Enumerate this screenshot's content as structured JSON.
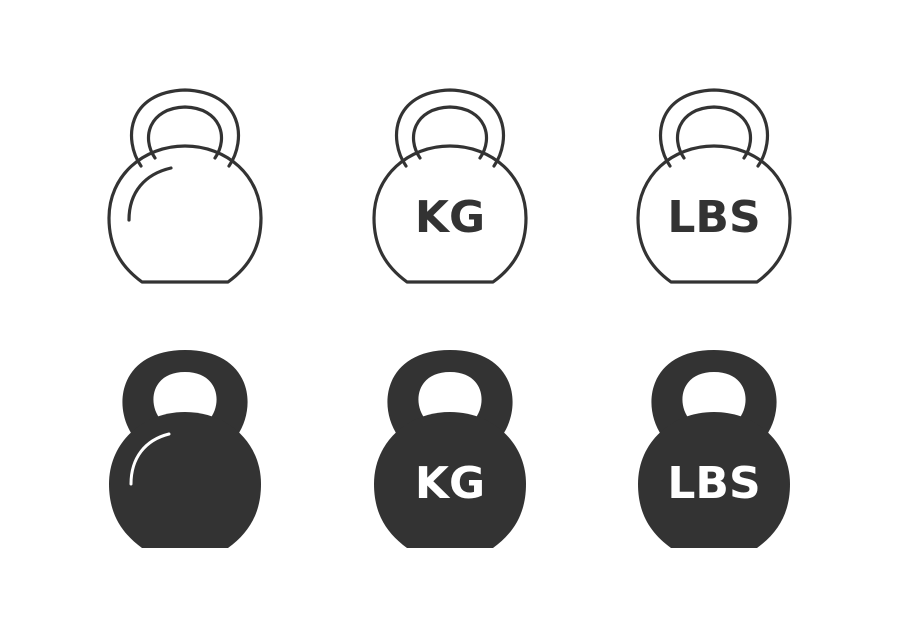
{
  "colors": {
    "ink": "#333333",
    "background": "#ffffff"
  },
  "icons": {
    "outline": [
      {
        "icon": "kettlebell-icon",
        "label": ""
      },
      {
        "icon": "kettlebell-kg-icon",
        "label": "KG"
      },
      {
        "icon": "kettlebell-lbs-icon",
        "label": "LBS"
      }
    ],
    "filled": [
      {
        "icon": "kettlebell-icon",
        "label": ""
      },
      {
        "icon": "kettlebell-kg-icon",
        "label": "KG"
      },
      {
        "icon": "kettlebell-lbs-icon",
        "label": "LBS"
      }
    ]
  }
}
